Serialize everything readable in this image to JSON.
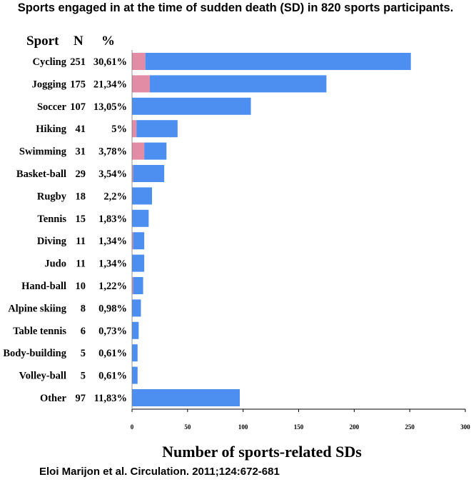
{
  "chart_data": {
    "type": "bar",
    "orientation": "horizontal",
    "stacked": true,
    "title": "Sports engaged in at the time of sudden death (SD) in 820 sports participants.",
    "table_headers": {
      "sport": "Sport",
      "n": "N",
      "pct": "%"
    },
    "categories": [
      "Cycling",
      "Jogging",
      "Soccer",
      "Hiking",
      "Swimming",
      "Basket-ball",
      "Rugby",
      "Tennis",
      "Diving",
      "Judo",
      "Hand-ball",
      "Alpine skiing",
      "Table tennis",
      "Body-building",
      "Volley-ball",
      "Other"
    ],
    "n_labels": [
      "251",
      "175",
      "107",
      "41",
      "31",
      "29",
      "18",
      "15",
      "11",
      "11",
      "10",
      "8",
      "6",
      "5",
      "5",
      "97"
    ],
    "pct_labels": [
      "30,61%",
      "21,34%",
      "13,05%",
      "5%",
      "3,78%",
      "3,54%",
      "2,2%",
      "1,83%",
      "1,34%",
      "1,34%",
      "1,22%",
      "0,98%",
      "0,73%",
      "0,61%",
      "0,61%",
      "11,83%"
    ],
    "series": [
      {
        "color": "#e38ca5",
        "values": [
          12,
          16,
          0,
          4,
          11,
          1,
          0,
          0,
          1,
          0,
          1,
          0,
          0,
          0,
          0,
          0
        ]
      },
      {
        "color": "#4d8ff0",
        "values": [
          239,
          159,
          107,
          37,
          20,
          28,
          18,
          15,
          10,
          11,
          9,
          8,
          6,
          5,
          5,
          97
        ]
      }
    ],
    "xlim": [
      0,
      300
    ],
    "xticks": [
      "0",
      "50",
      "100",
      "150",
      "200",
      "250",
      "300"
    ],
    "xlabel": "Number of sports-related SDs"
  },
  "citation": "Eloi Marijon et al. Circulation. 2011;124:672-681"
}
